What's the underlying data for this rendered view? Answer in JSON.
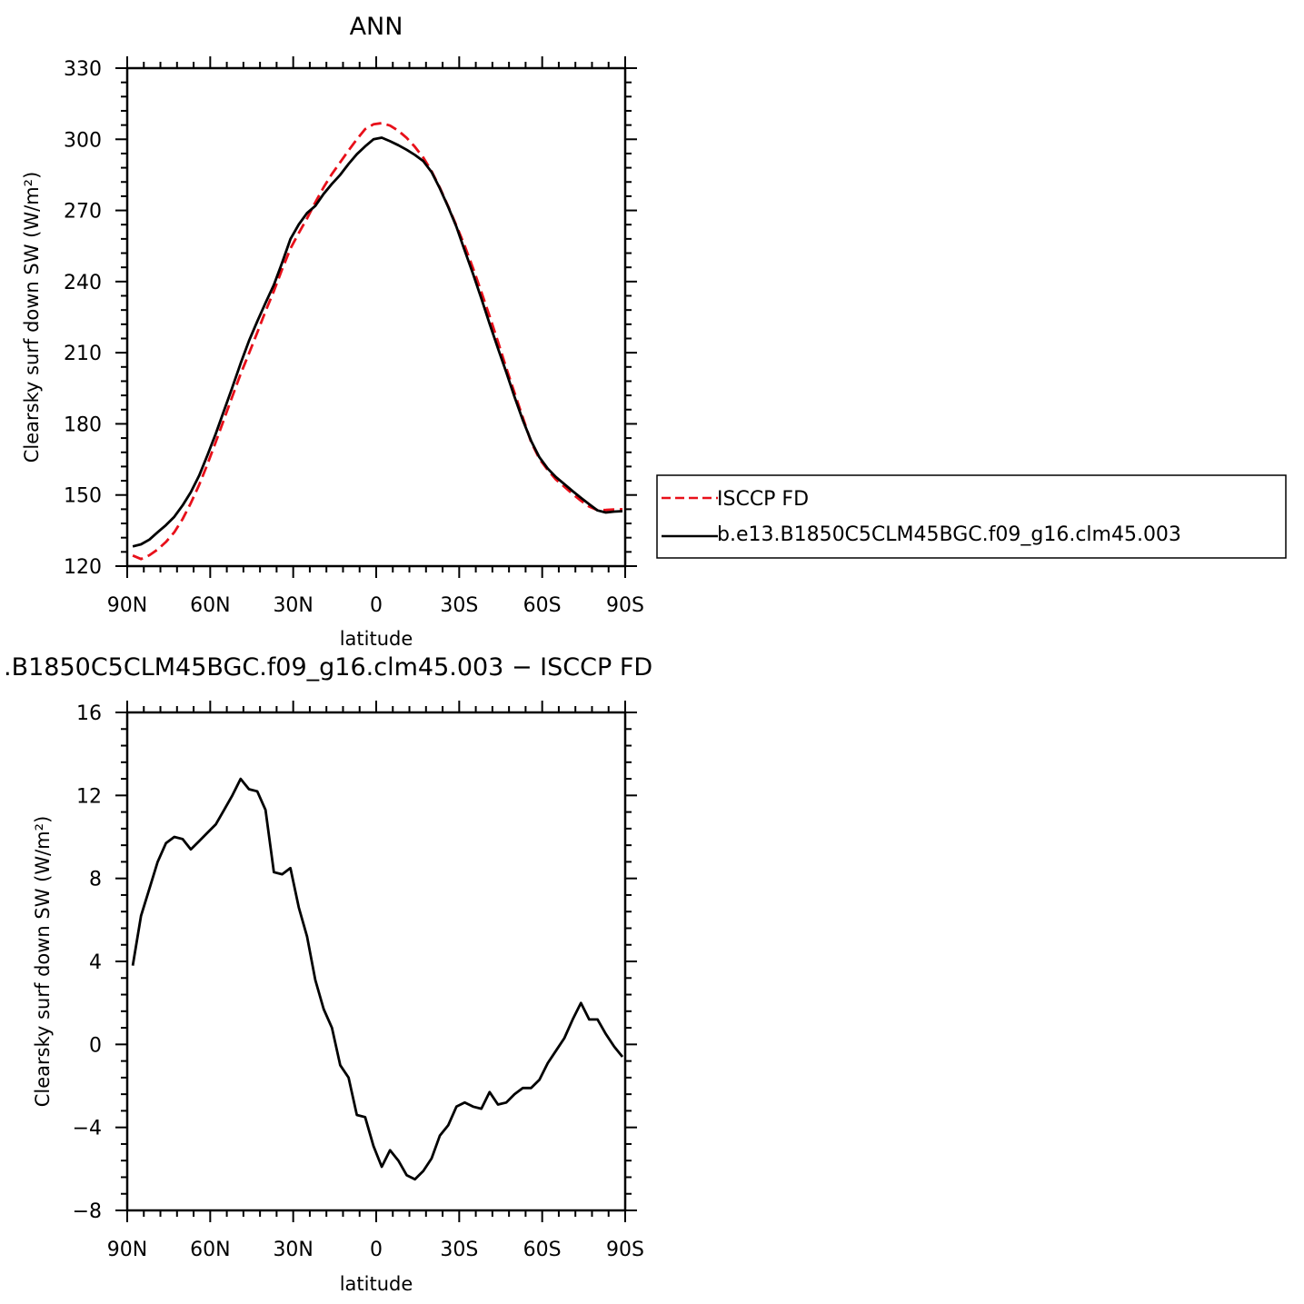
{
  "chart_data": [
    {
      "type": "line",
      "title": "ANN",
      "xlabel": "latitude",
      "ylabel": "Clearsky surf down SW (W/m²)",
      "xlim": [
        -90,
        90
      ],
      "ylim": [
        120,
        330
      ],
      "x_ticks": [
        -90,
        -60,
        -30,
        0,
        30,
        60,
        90
      ],
      "x_tick_labels": [
        "90N",
        "60N",
        "30N",
        "0",
        "30S",
        "60S",
        "90S"
      ],
      "y_ticks": [
        120,
        150,
        180,
        210,
        240,
        270,
        300,
        330
      ],
      "y_tick_labels": [
        "120",
        "150",
        "180",
        "210",
        "240",
        "270",
        "300",
        "330"
      ],
      "legend": {
        "placement": "right",
        "entries": [
          "ISCCP FD",
          "b.e13.B1850C5CLM45BGC.f09_g16.clm45.003"
        ]
      },
      "series": [
        {
          "name": "ISCCP FD",
          "color": "#e8101a",
          "dash": true,
          "x": [
            -88,
            -85,
            -82,
            -79,
            -76,
            -73,
            -70,
            -67,
            -64,
            -61,
            -58,
            -55,
            -52,
            -49,
            -46,
            -43,
            -40,
            -37,
            -34,
            -31,
            -28,
            -25,
            -22,
            -19,
            -16,
            -13,
            -10,
            -7,
            -4,
            -1,
            2,
            5,
            8,
            11,
            14,
            17,
            20,
            23,
            26,
            29,
            32,
            35,
            38,
            41,
            44,
            47,
            50,
            53,
            56,
            59,
            62,
            65,
            68,
            71,
            74,
            77,
            80,
            83,
            86,
            89
          ],
          "values": [
            124.5,
            123,
            124.6,
            127,
            130.2,
            134.3,
            139.8,
            146.6,
            154.3,
            163,
            172.3,
            182,
            191.6,
            201,
            209.7,
            218.5,
            227.5,
            236,
            245.2,
            253.9,
            260.5,
            266.6,
            273.4,
            279.8,
            285.4,
            290.3,
            295.3,
            300,
            304.3,
            306.3,
            306.8,
            305.8,
            303.6,
            300.6,
            296.8,
            292.3,
            286.6,
            279.6,
            271.7,
            263.6,
            255.1,
            245.6,
            235.6,
            225.4,
            214.6,
            203.6,
            193.1,
            182.6,
            172.3,
            165.2,
            160.5,
            156.5,
            153.5,
            150.4,
            147.6,
            145.1,
            143.6,
            143.7,
            143.9,
            144
          ]
        },
        {
          "name": "b.e13.B1850C5CLM45BGC.f09_g16.clm45.003",
          "color": "#000000",
          "dash": false,
          "x": [
            -88,
            -85,
            -82,
            -79,
            -76,
            -73,
            -70,
            -67,
            -64,
            -61,
            -58,
            -55,
            -52,
            -49,
            -46,
            -43,
            -40,
            -37,
            -34,
            -31,
            -28,
            -25,
            -22,
            -19,
            -16,
            -13,
            -10,
            -7,
            -4,
            -1,
            2,
            5,
            8,
            11,
            14,
            17,
            20,
            23,
            26,
            29,
            32,
            35,
            38,
            41,
            44,
            47,
            50,
            53,
            56,
            59,
            62,
            65,
            68,
            71,
            74,
            77,
            80,
            83,
            86,
            89
          ],
          "values": [
            128.3,
            129.2,
            131.2,
            134.3,
            137.3,
            140.8,
            145.6,
            151.2,
            158.2,
            166.8,
            175.8,
            185.7,
            195.4,
            205.5,
            215,
            223.2,
            231,
            238.6,
            248,
            257.9,
            264.1,
            268.9,
            271.9,
            277,
            281.2,
            285,
            289.6,
            293.7,
            297,
            300,
            300.7,
            299.2,
            297.5,
            295.6,
            293.4,
            290.8,
            286.2,
            279.3,
            271.5,
            263.1,
            253.1,
            243.2,
            232.9,
            222.2,
            211.8,
            201.8,
            191.4,
            181.5,
            172.8,
            165.9,
            161.1,
            157.5,
            154.6,
            151.6,
            148.8,
            146.1,
            143.5,
            142.6,
            143,
            143.2
          ]
        }
      ]
    },
    {
      "type": "line",
      "title": ".B1850C5CLM45BGC.f09_g16.clm45.003 − ISCCP FD",
      "xlabel": "latitude",
      "ylabel": "Clearsky surf down SW (W/m²)",
      "xlim": [
        -90,
        90
      ],
      "ylim": [
        -8,
        16
      ],
      "x_ticks": [
        -90,
        -60,
        -30,
        0,
        30,
        60,
        90
      ],
      "x_tick_labels": [
        "90N",
        "60N",
        "30N",
        "0",
        "30S",
        "60S",
        "90S"
      ],
      "y_ticks": [
        -8,
        -4,
        0,
        4,
        8,
        12,
        16
      ],
      "y_tick_labels": [
        "−8",
        "−4",
        "0",
        "4",
        "8",
        "12",
        "16"
      ],
      "series": [
        {
          "color": "#000000",
          "dash": false,
          "x": [
            -88,
            -85,
            -82,
            -79,
            -76,
            -73,
            -70,
            -67,
            -64,
            -61,
            -58,
            -55,
            -52,
            -49,
            -46,
            -43,
            -40,
            -37,
            -34,
            -31,
            -28,
            -25,
            -22,
            -19,
            -16,
            -13,
            -10,
            -7,
            -4,
            -1,
            2,
            5,
            8,
            11,
            14,
            17,
            20,
            23,
            26,
            29,
            32,
            35,
            38,
            41,
            44,
            47,
            50,
            53,
            56,
            59,
            62,
            65,
            68,
            71,
            74,
            77,
            80,
            83,
            86,
            89
          ],
          "values": [
            3.8,
            6.2,
            7.5,
            8.8,
            9.7,
            10,
            9.9,
            9.4,
            9.8,
            10.2,
            10.6,
            11.3,
            12,
            12.8,
            12.3,
            12.2,
            11.3,
            8.3,
            8.2,
            8.5,
            6.6,
            5.2,
            3.1,
            1.7,
            0.8,
            -1,
            -1.6,
            -3.4,
            -3.5,
            -4.9,
            -5.9,
            -5.1,
            -5.6,
            -6.3,
            -6.5,
            -6.1,
            -5.5,
            -4.4,
            -3.9,
            -3,
            -2.8,
            -3,
            -3.1,
            -2.3,
            -2.9,
            -2.8,
            -2.4,
            -2.1,
            -2.1,
            -1.7,
            -0.9,
            -0.3,
            0.3,
            1.2,
            2,
            1.2,
            1.2,
            0.5,
            -0.1,
            -0.6
          ]
        }
      ]
    }
  ]
}
